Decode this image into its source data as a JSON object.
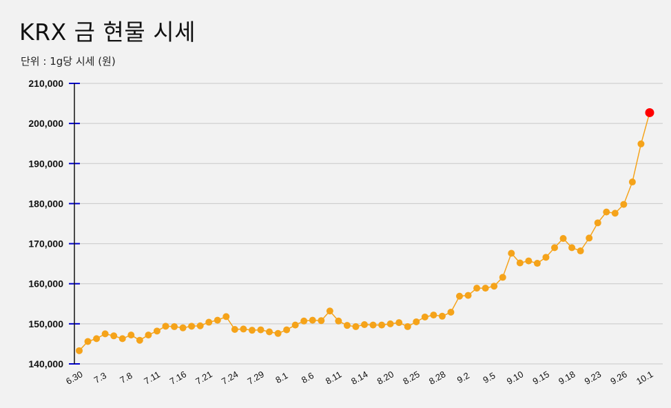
{
  "title": "KRX 금 현물 시세",
  "subtitle": "단위 : 1g당 시세 (원)",
  "colors": {
    "background": "#f2f2f2",
    "line": "#f5a31a",
    "marker": "#f5a31a",
    "highlight": "#ff0000",
    "axis": "#0000cc",
    "grid": "#c8c8c8"
  },
  "chart_data": {
    "type": "line",
    "title": "KRX 금 현물 시세",
    "subtitle": "단위 : 1g당 시세 (원)",
    "xlabel": "",
    "ylabel": "",
    "ylim": [
      140000,
      210000
    ],
    "yticks": [
      140000,
      150000,
      160000,
      170000,
      180000,
      190000,
      200000,
      210000
    ],
    "ytick_labels": [
      "140,000",
      "150,000",
      "160,000",
      "170,000",
      "180,000",
      "190,000",
      "200,000",
      "210,000"
    ],
    "grid": true,
    "xtick_labels": [
      "6.30",
      "7.3",
      "7.8",
      "7.11",
      "7.16",
      "7.21",
      "7.24",
      "7.29",
      "8.1",
      "8.6",
      "8.11",
      "8.14",
      "8.20",
      "8.25",
      "8.28",
      "9.2",
      "9.5",
      "9.10",
      "9.15",
      "9.18",
      "9.23",
      "9.26",
      "10.1"
    ],
    "highlight_last": true,
    "values": [
      143300,
      145600,
      146300,
      147500,
      147000,
      146300,
      147200,
      145900,
      147200,
      148200,
      149400,
      149300,
      149000,
      149400,
      149500,
      150400,
      150900,
      151800,
      148600,
      148700,
      148400,
      148500,
      148000,
      147600,
      148500,
      149700,
      150700,
      150900,
      150800,
      153200,
      150700,
      149600,
      149300,
      149800,
      149700,
      149700,
      150000,
      150300,
      149300,
      150500,
      151700,
      152200,
      151900,
      152900,
      156900,
      157100,
      158900,
      158900,
      159400,
      161600,
      167600,
      165200,
      165700,
      165100,
      166600,
      169000,
      171300,
      169000,
      168200,
      171400,
      175200,
      177900,
      177600,
      179800,
      185400,
      194900,
      202700
    ]
  }
}
